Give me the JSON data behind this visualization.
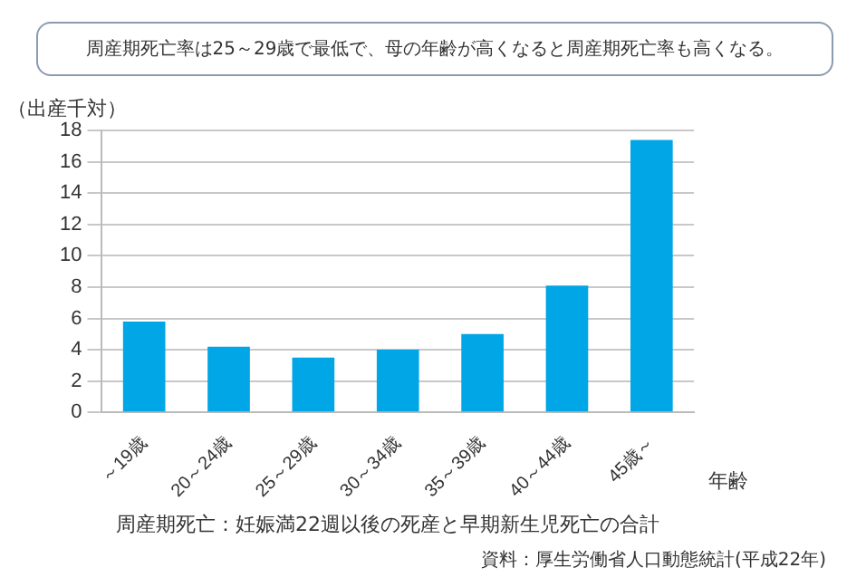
{
  "chart_data": {
    "type": "bar",
    "title": "周産期死亡率は25～29歳で最低で、母の年齢が高くなると周産期死亡率も高くなる。",
    "ylabel": "（出産千対）",
    "xlabel": "年齢",
    "categories": [
      "～19歳",
      "20～24歳",
      "25～29歳",
      "30～34歳",
      "35～39歳",
      "40～44歳",
      "45歳～"
    ],
    "values": [
      5.8,
      4.2,
      3.5,
      4.0,
      5.0,
      8.1,
      17.4
    ],
    "color": "#00a6e6",
    "ylim": [
      0,
      18
    ],
    "yticks": [
      0,
      2,
      4,
      6,
      8,
      10,
      12,
      14,
      16,
      18
    ],
    "grid": "y",
    "legend": false,
    "annotations": [
      "周産期死亡：妊娠満22週以後の死産と早期新生児死亡の合計",
      "資料：厚生労働省人口動態統計(平成22年)"
    ]
  }
}
